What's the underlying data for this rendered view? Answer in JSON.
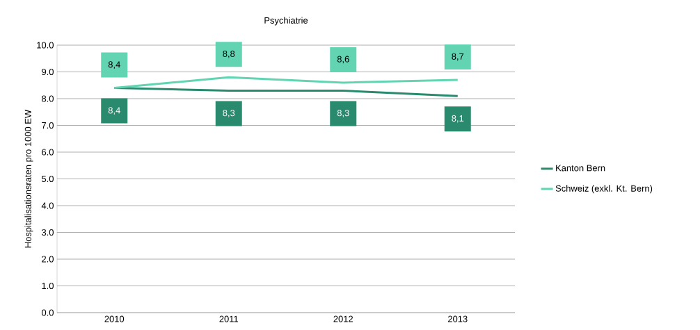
{
  "chart_data": {
    "type": "line",
    "title": "Psychiatrie",
    "ylabel": "Hospitalisationsraten pro 1000 EW",
    "categories": [
      "2010",
      "2011",
      "2012",
      "2013"
    ],
    "series": [
      {
        "name": "Kanton Bern",
        "color": "#2a8a6e",
        "values": [
          8.4,
          8.3,
          8.3,
          8.1
        ],
        "value_labels": [
          "8,4",
          "8,3",
          "8,3",
          "8,1"
        ]
      },
      {
        "name": "Schweiz (exkl. Kt. Bern)",
        "color": "#62d4b2",
        "values": [
          8.4,
          8.8,
          8.6,
          8.7
        ],
        "value_labels": [
          "8,4",
          "8,8",
          "8,6",
          "8,7"
        ]
      }
    ],
    "ylim": [
      0,
      10
    ],
    "yticks": [
      {
        "value": 0,
        "label": "0.0"
      },
      {
        "value": 1,
        "label": "1.0"
      },
      {
        "value": 2,
        "label": "2.0"
      },
      {
        "value": 3,
        "label": "3.0"
      },
      {
        "value": 4,
        "label": "4.0"
      },
      {
        "value": 5,
        "label": "5.0"
      },
      {
        "value": 6,
        "label": "6.0"
      },
      {
        "value": 7,
        "label": "7.0"
      },
      {
        "value": 8,
        "label": "8.0"
      },
      {
        "value": 9,
        "label": "9.0"
      },
      {
        "value": 10,
        "label": "10.0"
      }
    ],
    "grid": "y",
    "legend": "right",
    "marker": "none",
    "line_style": "solid"
  }
}
